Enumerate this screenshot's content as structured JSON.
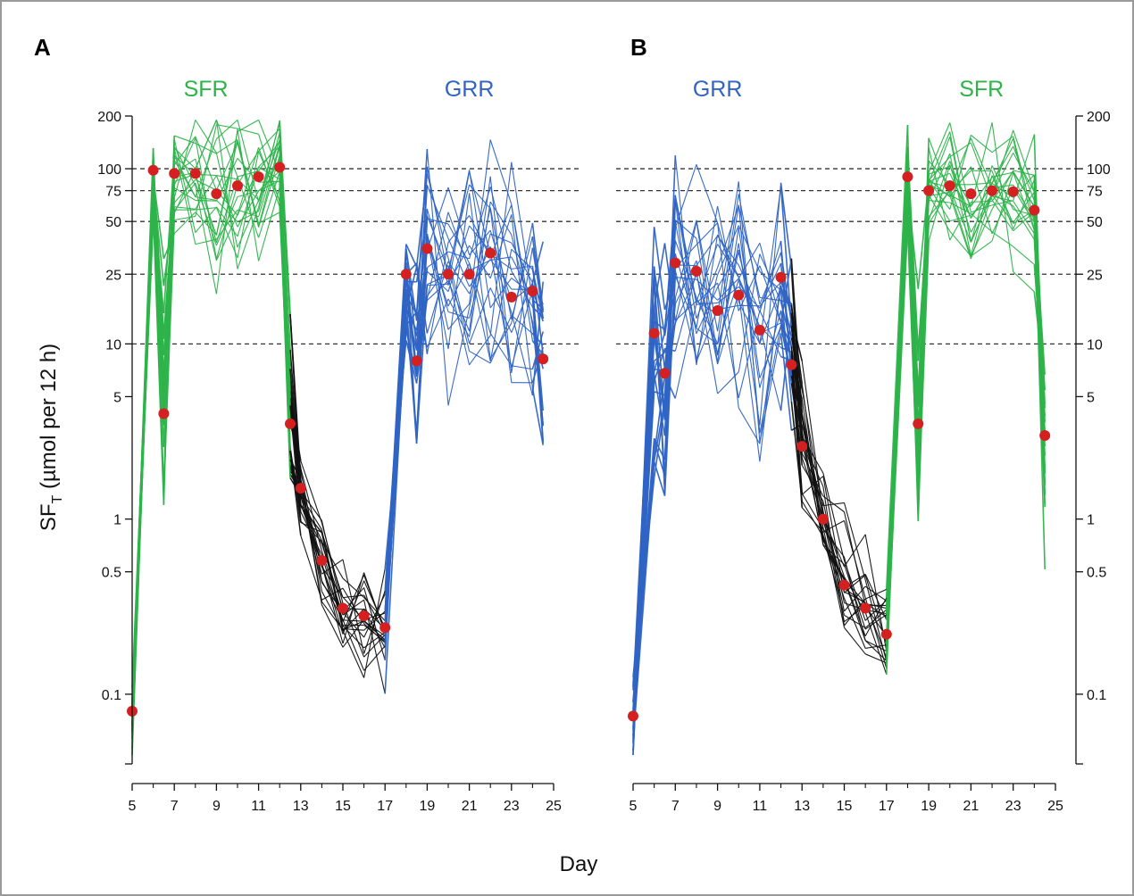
{
  "chart_data": {
    "type": "line",
    "xlabel": "Day",
    "ylabel_main": "SF",
    "ylabel_sub": "T",
    "ylabel_rest": " (µmol per 12 h)",
    "y_scale": "log",
    "ylim": [
      0.04,
      200
    ],
    "xlim": [
      5,
      25
    ],
    "x_ticks": [
      5,
      7,
      9,
      11,
      13,
      15,
      17,
      19,
      21,
      23,
      25
    ],
    "x_minor_ticks": [
      6,
      8,
      10,
      12,
      14,
      16,
      18,
      20,
      22,
      24
    ],
    "y_ticks": [
      0.1,
      0.5,
      1,
      5,
      10,
      25,
      50,
      75,
      100,
      200
    ],
    "y_tick_labels": [
      "0.1",
      "0.5",
      "1",
      "5",
      "10",
      "25",
      "50",
      "75",
      "100",
      "200"
    ],
    "reference_lines": [
      10,
      25,
      50,
      75,
      100
    ],
    "colors": {
      "SFR": "#2db34a",
      "GRR": "#2f64c4",
      "recovery": "#111111",
      "median": "#d42020",
      "reference": "#333333"
    },
    "panels": [
      {
        "label": "A",
        "phases": [
          {
            "name": "SFR",
            "day": 8.5,
            "color": "#2db34a"
          },
          {
            "name": "GRR",
            "day": 21.0,
            "color": "#2f64c4"
          }
        ],
        "median_points": [
          {
            "x": 5.0,
            "y": 0.08
          },
          {
            "x": 6.0,
            "y": 98
          },
          {
            "x": 6.5,
            "y": 4.0
          },
          {
            "x": 7.0,
            "y": 94
          },
          {
            "x": 8.0,
            "y": 94
          },
          {
            "x": 9.0,
            "y": 72
          },
          {
            "x": 10.0,
            "y": 80
          },
          {
            "x": 11.0,
            "y": 90
          },
          {
            "x": 12.0,
            "y": 102
          },
          {
            "x": 12.5,
            "y": 3.5
          },
          {
            "x": 13.0,
            "y": 1.5
          },
          {
            "x": 14.0,
            "y": 0.58
          },
          {
            "x": 15.0,
            "y": 0.31
          },
          {
            "x": 16.0,
            "y": 0.28
          },
          {
            "x": 17.0,
            "y": 0.24
          },
          {
            "x": 18.0,
            "y": 25
          },
          {
            "x": 18.5,
            "y": 8.0
          },
          {
            "x": 19.0,
            "y": 35
          },
          {
            "x": 20.0,
            "y": 25
          },
          {
            "x": 21.0,
            "y": 25
          },
          {
            "x": 22.0,
            "y": 33
          },
          {
            "x": 23.0,
            "y": 18.5
          },
          {
            "x": 24.0,
            "y": 20
          },
          {
            "x": 24.5,
            "y": 8.2
          }
        ]
      },
      {
        "label": "B",
        "phases": [
          {
            "name": "GRR",
            "day": 9.0,
            "color": "#2f64c4"
          },
          {
            "name": "SFR",
            "day": 21.5,
            "color": "#2db34a"
          }
        ],
        "median_points": [
          {
            "x": 5.0,
            "y": 0.075
          },
          {
            "x": 6.0,
            "y": 11.5
          },
          {
            "x": 6.5,
            "y": 6.8
          },
          {
            "x": 7.0,
            "y": 29
          },
          {
            "x": 8.0,
            "y": 26
          },
          {
            "x": 9.0,
            "y": 15.5
          },
          {
            "x": 10.0,
            "y": 19
          },
          {
            "x": 11.0,
            "y": 12
          },
          {
            "x": 12.0,
            "y": 24
          },
          {
            "x": 12.5,
            "y": 7.6
          },
          {
            "x": 13.0,
            "y": 2.6
          },
          {
            "x": 14.0,
            "y": 1.0
          },
          {
            "x": 15.0,
            "y": 0.42
          },
          {
            "x": 16.0,
            "y": 0.31
          },
          {
            "x": 17.0,
            "y": 0.22
          },
          {
            "x": 18.0,
            "y": 90
          },
          {
            "x": 18.5,
            "y": 3.5
          },
          {
            "x": 19.0,
            "y": 75
          },
          {
            "x": 20.0,
            "y": 80
          },
          {
            "x": 21.0,
            "y": 72
          },
          {
            "x": 22.0,
            "y": 75
          },
          {
            "x": 23.0,
            "y": 74
          },
          {
            "x": 24.0,
            "y": 58
          },
          {
            "x": 24.5,
            "y": 3.0
          }
        ]
      }
    ]
  }
}
